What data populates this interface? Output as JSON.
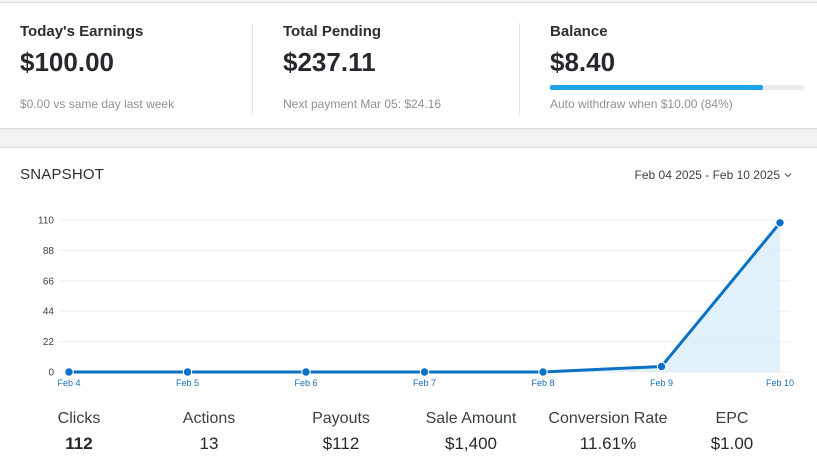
{
  "top": {
    "earnings": {
      "title": "Today's Earnings",
      "value": "$100.00",
      "sub": "$0.00 vs same day last week"
    },
    "pending": {
      "title": "Total Pending",
      "value": "$237.11",
      "sub": "Next payment Mar 05: $24.16"
    },
    "balance": {
      "title": "Balance",
      "value": "$8.40",
      "sub": "Auto withdraw when $10.00 (84%)",
      "progress": 0.84
    }
  },
  "snapshot": {
    "title": "SNAPSHOT",
    "date_range": "Feb 04 2025 - Feb 10 2025",
    "stats": [
      {
        "label": "Clicks",
        "value": "112"
      },
      {
        "label": "Actions",
        "value": "13"
      },
      {
        "label": "Payouts",
        "value": "$112"
      },
      {
        "label": "Sale Amount",
        "value": "$1,400"
      },
      {
        "label": "Conversion Rate",
        "value": "11.61%"
      },
      {
        "label": "EPC",
        "value": "$1.00"
      }
    ]
  },
  "colors": {
    "accent": "#1ba4e6",
    "line": "#0a72c4",
    "area": "#dceefb"
  },
  "chart_data": {
    "type": "area",
    "categories": [
      "Feb 4",
      "Feb 5",
      "Feb 6",
      "Feb 7",
      "Feb 8",
      "Feb 9",
      "Feb 10"
    ],
    "values": [
      0,
      0,
      0,
      0,
      0,
      4,
      108
    ],
    "yticks": [
      0,
      22,
      44,
      66,
      88,
      110
    ],
    "ylim": [
      0,
      110
    ],
    "grid": true,
    "legend": "none"
  }
}
